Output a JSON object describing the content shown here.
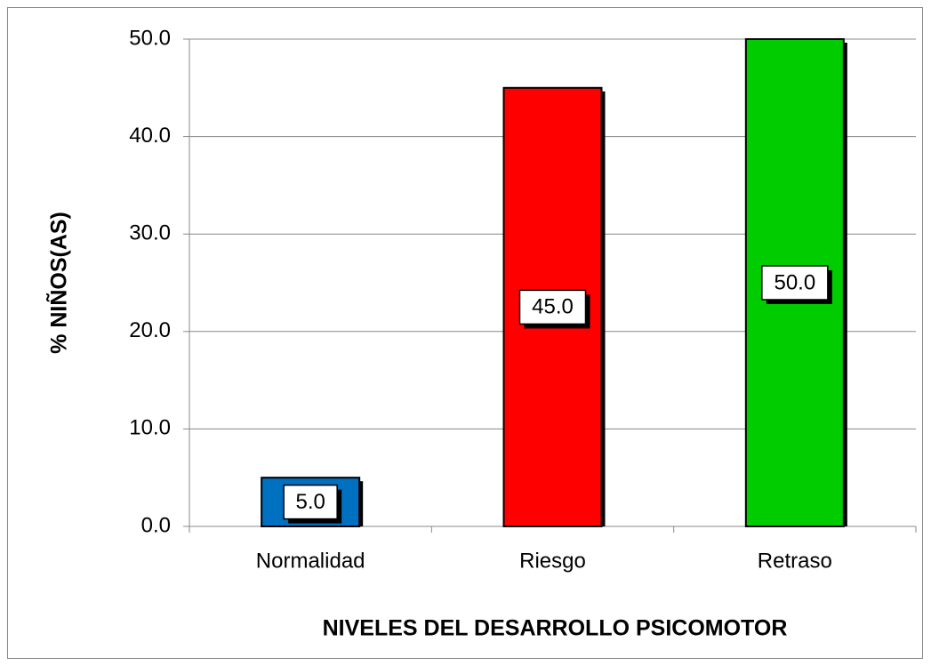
{
  "chart_data": {
    "type": "bar",
    "x_label": "NIVELES DEL DESARROLLO  PSICOMOTOR",
    "y_label": "% NIÑOS(AS)",
    "categories": [
      "Normalidad",
      "Riesgo",
      "Retraso"
    ],
    "values": [
      5,
      45,
      50
    ],
    "value_labels": [
      "5.0",
      "45.0",
      "50.0"
    ],
    "colors": [
      "#0070c0",
      "#ff0000",
      "#00cc00"
    ],
    "ylim": [
      0,
      50
    ],
    "yticks": [
      {
        "value": 0,
        "label": "0.0"
      },
      {
        "value": 10,
        "label": "10.0"
      },
      {
        "value": 20,
        "label": "20.0"
      },
      {
        "value": 30,
        "label": "30.0"
      },
      {
        "value": 40,
        "label": "40.0"
      },
      {
        "value": 50,
        "label": "50.0"
      }
    ],
    "grid": true
  }
}
